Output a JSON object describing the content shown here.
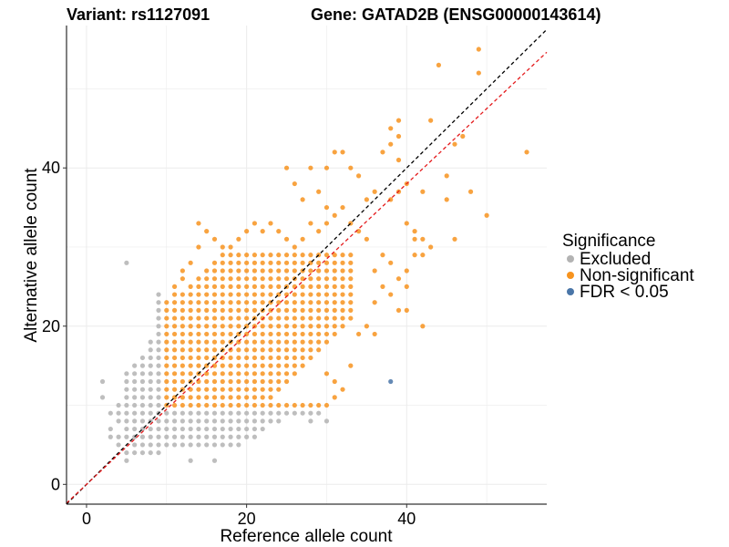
{
  "chart_data": {
    "type": "scatter",
    "title_left": "Variant: rs1127091",
    "title_right": "Gene: GATAD2B (ENSG00000143614)",
    "xlabel": "Reference allele count",
    "ylabel": "Alternative allele count",
    "xlim": [
      -2.5,
      57.5
    ],
    "ylim": [
      -2.5,
      58
    ],
    "xticks": [
      0,
      20,
      40
    ],
    "yticks": [
      0,
      20,
      40
    ],
    "grid": true,
    "legend": {
      "title": "Significance",
      "position": "right",
      "entries": [
        {
          "label": "Excluded",
          "color": "#b3b3b3"
        },
        {
          "label": "Non-significant",
          "color": "#f7931e"
        },
        {
          "label": "FDR < 0.05",
          "color": "#4a76a8"
        }
      ]
    },
    "reference_lines": [
      {
        "name": "identity",
        "color": "#000000",
        "style": "dashed",
        "slope": 1.0,
        "intercept": 0
      },
      {
        "name": "fit",
        "color": "#e41a1c",
        "style": "dashed",
        "slope": 0.95,
        "intercept": 0
      }
    ],
    "series": [
      {
        "name": "Excluded",
        "color": "#b3b3b3",
        "points": [
          [
            2,
            13
          ],
          [
            2,
            11
          ],
          [
            3,
            7
          ],
          [
            3,
            6
          ],
          [
            3,
            9
          ],
          [
            4,
            8
          ],
          [
            4,
            6
          ],
          [
            4,
            5
          ],
          [
            4,
            9
          ],
          [
            4,
            10
          ],
          [
            5,
            28
          ],
          [
            5,
            3
          ],
          [
            5,
            4
          ],
          [
            5,
            6
          ],
          [
            5,
            7
          ],
          [
            5,
            8
          ],
          [
            5,
            9
          ],
          [
            5,
            10
          ],
          [
            5,
            11
          ],
          [
            5,
            12
          ],
          [
            5,
            13
          ],
          [
            5,
            14
          ],
          [
            6,
            4
          ],
          [
            6,
            5
          ],
          [
            6,
            6
          ],
          [
            6,
            7
          ],
          [
            6,
            8
          ],
          [
            6,
            9
          ],
          [
            6,
            10
          ],
          [
            6,
            11
          ],
          [
            6,
            12
          ],
          [
            6,
            13
          ],
          [
            6,
            14
          ],
          [
            6,
            15
          ],
          [
            7,
            4
          ],
          [
            7,
            5
          ],
          [
            7,
            6
          ],
          [
            7,
            7
          ],
          [
            7,
            8
          ],
          [
            7,
            9
          ],
          [
            7,
            10
          ],
          [
            7,
            11
          ],
          [
            7,
            12
          ],
          [
            7,
            13
          ],
          [
            7,
            14
          ],
          [
            7,
            15
          ],
          [
            7,
            16
          ],
          [
            8,
            4
          ],
          [
            8,
            5
          ],
          [
            8,
            6
          ],
          [
            8,
            7
          ],
          [
            8,
            8
          ],
          [
            8,
            9
          ],
          [
            8,
            10
          ],
          [
            8,
            11
          ],
          [
            8,
            12
          ],
          [
            8,
            13
          ],
          [
            8,
            14
          ],
          [
            8,
            15
          ],
          [
            8,
            16
          ],
          [
            8,
            17
          ],
          [
            8,
            18
          ],
          [
            9,
            4
          ],
          [
            9,
            5
          ],
          [
            9,
            6
          ],
          [
            9,
            7
          ],
          [
            9,
            8
          ],
          [
            9,
            9
          ],
          [
            9,
            10
          ],
          [
            9,
            11
          ],
          [
            9,
            12
          ],
          [
            9,
            13
          ],
          [
            9,
            14
          ],
          [
            9,
            15
          ],
          [
            9,
            16
          ],
          [
            9,
            17
          ],
          [
            9,
            18
          ],
          [
            9,
            19
          ],
          [
            9,
            20
          ],
          [
            9,
            21
          ],
          [
            9,
            22
          ],
          [
            9,
            23
          ],
          [
            9,
            24
          ],
          [
            10,
            5
          ],
          [
            10,
            6
          ],
          [
            10,
            7
          ],
          [
            10,
            8
          ],
          [
            10,
            9
          ],
          [
            11,
            5
          ],
          [
            11,
            6
          ],
          [
            11,
            7
          ],
          [
            11,
            8
          ],
          [
            11,
            9
          ],
          [
            12,
            5
          ],
          [
            12,
            6
          ],
          [
            12,
            7
          ],
          [
            12,
            8
          ],
          [
            12,
            9
          ],
          [
            13,
            3
          ],
          [
            13,
            5
          ],
          [
            13,
            6
          ],
          [
            13,
            7
          ],
          [
            13,
            8
          ],
          [
            13,
            9
          ],
          [
            14,
            5
          ],
          [
            14,
            6
          ],
          [
            14,
            7
          ],
          [
            14,
            8
          ],
          [
            14,
            9
          ],
          [
            15,
            5
          ],
          [
            15,
            6
          ],
          [
            15,
            7
          ],
          [
            15,
            8
          ],
          [
            15,
            9
          ],
          [
            16,
            3
          ],
          [
            16,
            5
          ],
          [
            16,
            6
          ],
          [
            16,
            7
          ],
          [
            16,
            8
          ],
          [
            16,
            9
          ],
          [
            17,
            5
          ],
          [
            17,
            6
          ],
          [
            17,
            7
          ],
          [
            17,
            8
          ],
          [
            17,
            9
          ],
          [
            18,
            5
          ],
          [
            18,
            6
          ],
          [
            18,
            7
          ],
          [
            18,
            8
          ],
          [
            18,
            9
          ],
          [
            19,
            5
          ],
          [
            19,
            6
          ],
          [
            19,
            7
          ],
          [
            19,
            8
          ],
          [
            19,
            9
          ],
          [
            20,
            6
          ],
          [
            20,
            7
          ],
          [
            20,
            8
          ],
          [
            20,
            9
          ],
          [
            21,
            6
          ],
          [
            21,
            7
          ],
          [
            21,
            8
          ],
          [
            21,
            9
          ],
          [
            22,
            7
          ],
          [
            22,
            8
          ],
          [
            22,
            9
          ],
          [
            23,
            8
          ],
          [
            23,
            9
          ],
          [
            24,
            8
          ],
          [
            24,
            9
          ],
          [
            25,
            9
          ],
          [
            26,
            9
          ],
          [
            27,
            9
          ],
          [
            28,
            8
          ],
          [
            28,
            9
          ],
          [
            29,
            9
          ],
          [
            30,
            8
          ]
        ]
      },
      {
        "name": "Non-significant",
        "color": "#f7931e",
        "points": [
          [
            49,
            55
          ],
          [
            49,
            52
          ],
          [
            44,
            53
          ],
          [
            55,
            42
          ],
          [
            43,
            46
          ],
          [
            47,
            44
          ],
          [
            46,
            43
          ],
          [
            50,
            34
          ],
          [
            45,
            39
          ],
          [
            45,
            36
          ],
          [
            42,
            37
          ],
          [
            43,
            30
          ],
          [
            42,
            31
          ],
          [
            42,
            29
          ],
          [
            41,
            32
          ],
          [
            41,
            31
          ],
          [
            46,
            31
          ],
          [
            48,
            37
          ],
          [
            42,
            20
          ],
          [
            39,
            46
          ],
          [
            38,
            45
          ],
          [
            39,
            44
          ],
          [
            38,
            43
          ],
          [
            37,
            42
          ],
          [
            39,
            41
          ],
          [
            31,
            42
          ],
          [
            32,
            42
          ],
          [
            30,
            40
          ],
          [
            33,
            40
          ],
          [
            28,
            40
          ],
          [
            34,
            39
          ],
          [
            25,
            40
          ],
          [
            26,
            38
          ],
          [
            36,
            37
          ],
          [
            35,
            36
          ],
          [
            30,
            35
          ],
          [
            32,
            35
          ],
          [
            29,
            37
          ],
          [
            31,
            34
          ],
          [
            27,
            36
          ],
          [
            33,
            33
          ],
          [
            34,
            32
          ],
          [
            35,
            31
          ],
          [
            37,
            29
          ],
          [
            38,
            28
          ],
          [
            36,
            27
          ],
          [
            39,
            26
          ],
          [
            37,
            25
          ],
          [
            38,
            24
          ],
          [
            36,
            23
          ],
          [
            39,
            22
          ],
          [
            35,
            20
          ],
          [
            36,
            19
          ],
          [
            34,
            19
          ],
          [
            33,
            15
          ],
          [
            31,
            13
          ],
          [
            30,
            14
          ],
          [
            40,
            22
          ],
          [
            40,
            25
          ],
          [
            40,
            27
          ],
          [
            41,
            29
          ],
          [
            40,
            33
          ],
          [
            40,
            38
          ],
          [
            38,
            36
          ],
          [
            39,
            37
          ],
          [
            28,
            33
          ],
          [
            30,
            33
          ],
          [
            29,
            32
          ],
          [
            27,
            31
          ],
          [
            26,
            30
          ],
          [
            25,
            31
          ],
          [
            24,
            32
          ],
          [
            23,
            33
          ],
          [
            22,
            32
          ],
          [
            21,
            33
          ],
          [
            20,
            32
          ],
          [
            19,
            31
          ],
          [
            18,
            30
          ],
          [
            17,
            30
          ],
          [
            16,
            31
          ],
          [
            15,
            32
          ],
          [
            14,
            33
          ],
          [
            14,
            30
          ],
          [
            13,
            28
          ],
          [
            12,
            27
          ],
          [
            12,
            26
          ],
          [
            11,
            25
          ],
          [
            11,
            24
          ],
          [
            10,
            23
          ],
          [
            10,
            22
          ],
          [
            10,
            21
          ],
          [
            10,
            20
          ],
          [
            10,
            19
          ],
          [
            10,
            18
          ],
          [
            10,
            17
          ],
          [
            10,
            16
          ],
          [
            10,
            15
          ],
          [
            10,
            14
          ],
          [
            10,
            13
          ],
          [
            10,
            12
          ],
          [
            10,
            11
          ],
          [
            10,
            10
          ],
          [
            11,
            10
          ],
          [
            12,
            10
          ],
          [
            13,
            10
          ],
          [
            14,
            10
          ],
          [
            15,
            10
          ],
          [
            16,
            10
          ],
          [
            17,
            10
          ],
          [
            18,
            10
          ],
          [
            19,
            10
          ],
          [
            20,
            10
          ],
          [
            21,
            10
          ],
          [
            22,
            10
          ],
          [
            23,
            10
          ],
          [
            24,
            10
          ],
          [
            25,
            10
          ],
          [
            26,
            10
          ],
          [
            27,
            10
          ],
          [
            28,
            10
          ],
          [
            29,
            10
          ],
          [
            30,
            10
          ],
          [
            31,
            11
          ],
          [
            32,
            12
          ]
        ],
        "fill_block": {
          "comment": "dense integer grid of non-significant points",
          "x_range": [
            11,
            33
          ],
          "y_range": [
            11,
            29
          ]
        }
      },
      {
        "name": "FDR < 0.05",
        "color": "#4a76a8",
        "points": [
          [
            38,
            13
          ]
        ]
      }
    ]
  }
}
